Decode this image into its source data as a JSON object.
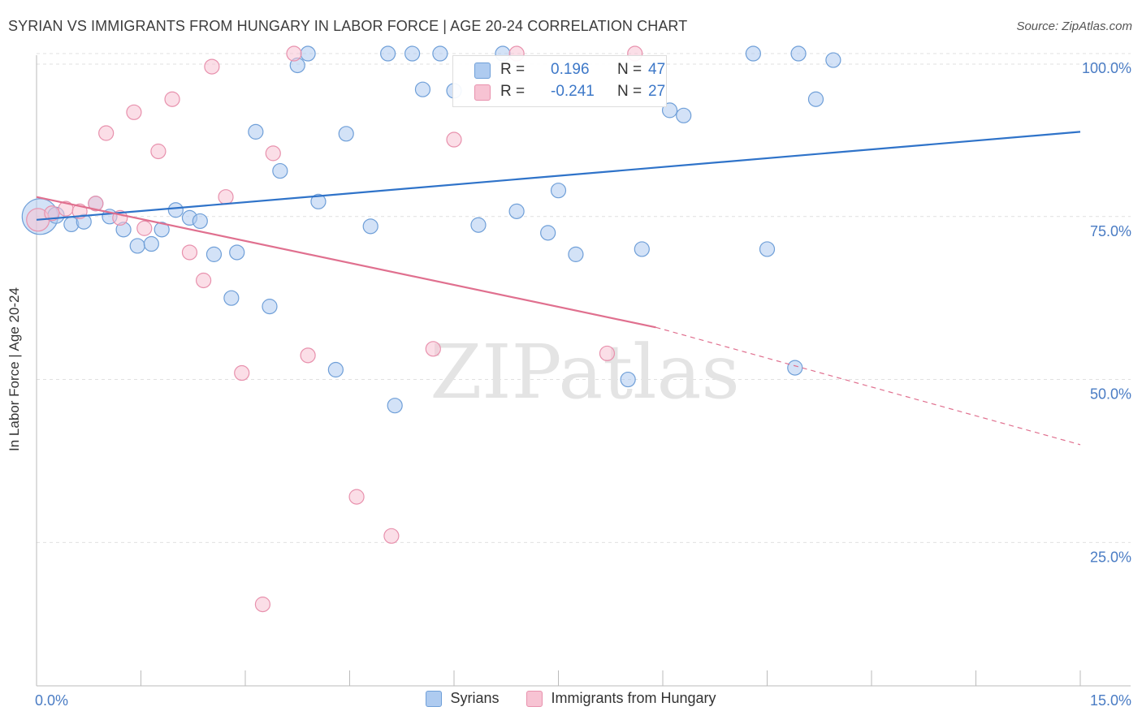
{
  "title": "SYRIAN VS IMMIGRANTS FROM HUNGARY IN LABOR FORCE | AGE 20-24 CORRELATION CHART",
  "source": "Source: ZipAtlas.com",
  "watermark": "ZIPatlas",
  "colors": {
    "blue_fill": "#aecbf0",
    "blue_stroke": "#6f9fd8",
    "blue_line": "#2f73c9",
    "pink_fill": "#f7c3d3",
    "pink_stroke": "#e891ad",
    "pink_line": "#e0708f",
    "axis_text": "#4a7cc4",
    "grid": "#e0e0e0"
  },
  "stats": [
    {
      "r_label": "R =",
      "r_value": "0.196",
      "n_label": "N =",
      "n_value": "47",
      "series": "syrians"
    },
    {
      "r_label": "R =",
      "r_value": "-0.241",
      "n_label": "N =",
      "n_value": "27",
      "series": "hungary"
    }
  ],
  "legend": [
    {
      "label": "Syrians",
      "series": "syrians"
    },
    {
      "label": "Immigrants from Hungary",
      "series": "hungary"
    }
  ],
  "chart_data": {
    "type": "scatter",
    "title": "SYRIAN VS IMMIGRANTS FROM HUNGARY IN LABOR FORCE | AGE 20-24 CORRELATION CHART",
    "xlabel": "",
    "ylabel": "In Labor Force | Age 20-24",
    "xlim": [
      0,
      15
    ],
    "ylim": [
      3,
      101
    ],
    "x_tick_labels": [
      "0.0%",
      "15.0%"
    ],
    "y_ticks": [
      25,
      50,
      75,
      100
    ],
    "y_tick_labels": [
      "25.0%",
      "50.0%",
      "75.0%",
      "100.0%"
    ],
    "grid": true,
    "legend_position": "bottom",
    "series": [
      {
        "name": "Syrians",
        "key": "syrians",
        "trend": {
          "x": [
            0,
            15
          ],
          "y": [
            74.5,
            88.0
          ]
        },
        "points": [
          [
            0.05,
            75.0,
            22
          ],
          [
            0.28,
            75.2,
            10
          ],
          [
            0.5,
            73.8,
            9
          ],
          [
            0.68,
            74.2,
            9
          ],
          [
            0.85,
            77.0,
            9
          ],
          [
            1.05,
            75.0,
            9
          ],
          [
            1.25,
            73.0,
            9
          ],
          [
            1.45,
            70.5,
            9
          ],
          [
            1.65,
            70.8,
            9
          ],
          [
            1.8,
            73.0,
            9
          ],
          [
            2.0,
            76.0,
            9
          ],
          [
            2.2,
            74.8,
            9
          ],
          [
            2.35,
            74.3,
            9
          ],
          [
            2.55,
            69.2,
            9
          ],
          [
            2.8,
            62.5,
            9
          ],
          [
            2.88,
            69.5,
            9
          ],
          [
            3.15,
            88.0,
            9
          ],
          [
            3.35,
            61.2,
            9
          ],
          [
            3.5,
            82.0,
            9
          ],
          [
            3.75,
            98.2,
            9
          ],
          [
            3.9,
            100.0,
            9
          ],
          [
            4.05,
            77.3,
            9
          ],
          [
            4.3,
            51.5,
            9
          ],
          [
            4.45,
            87.7,
            9
          ],
          [
            4.8,
            73.5,
            9
          ],
          [
            5.05,
            100.0,
            9
          ],
          [
            5.15,
            46.0,
            9
          ],
          [
            5.4,
            100.0,
            9
          ],
          [
            5.55,
            94.5,
            9
          ],
          [
            5.8,
            100.0,
            9
          ],
          [
            6.0,
            94.3,
            9
          ],
          [
            6.35,
            73.7,
            9
          ],
          [
            6.7,
            100.0,
            9
          ],
          [
            6.9,
            75.8,
            9
          ],
          [
            7.35,
            72.5,
            9
          ],
          [
            7.5,
            79.0,
            9
          ],
          [
            7.75,
            69.2,
            9
          ],
          [
            8.5,
            50.0,
            9
          ],
          [
            8.7,
            70.0,
            9
          ],
          [
            9.1,
            91.3,
            9
          ],
          [
            9.3,
            90.5,
            9
          ],
          [
            10.3,
            100.0,
            9
          ],
          [
            10.5,
            70.0,
            9
          ],
          [
            10.9,
            51.8,
            9
          ],
          [
            10.95,
            100.0,
            9
          ],
          [
            11.2,
            93.0,
            9
          ],
          [
            11.45,
            99.0,
            9
          ]
        ]
      },
      {
        "name": "Immigrants from Hungary",
        "key": "hungary",
        "trend": {
          "x": [
            0,
            8.9
          ],
          "y": [
            78.0,
            58.0
          ],
          "dashed_to": {
            "x": 15,
            "y": 40.0
          }
        },
        "points": [
          [
            0.02,
            74.5,
            14
          ],
          [
            0.22,
            75.5,
            9
          ],
          [
            0.42,
            76.2,
            9
          ],
          [
            0.62,
            75.8,
            9
          ],
          [
            0.85,
            77.0,
            9
          ],
          [
            1.0,
            87.8,
            9
          ],
          [
            1.2,
            74.8,
            9
          ],
          [
            1.4,
            91.0,
            9
          ],
          [
            1.55,
            73.2,
            9
          ],
          [
            1.75,
            85.0,
            9
          ],
          [
            1.95,
            93.0,
            9
          ],
          [
            2.2,
            69.5,
            9
          ],
          [
            2.4,
            65.2,
            9
          ],
          [
            2.52,
            98.0,
            9
          ],
          [
            2.72,
            78.0,
            9
          ],
          [
            2.95,
            51.0,
            9
          ],
          [
            3.25,
            15.5,
            9
          ],
          [
            3.4,
            84.7,
            9
          ],
          [
            3.7,
            100.0,
            9
          ],
          [
            3.9,
            53.7,
            9
          ],
          [
            4.6,
            32.0,
            9
          ],
          [
            5.1,
            26.0,
            9
          ],
          [
            5.7,
            54.7,
            9
          ],
          [
            6.0,
            86.8,
            9
          ],
          [
            6.9,
            100.0,
            9
          ],
          [
            8.2,
            54.0,
            9
          ],
          [
            8.6,
            100.0,
            9
          ]
        ]
      }
    ]
  }
}
